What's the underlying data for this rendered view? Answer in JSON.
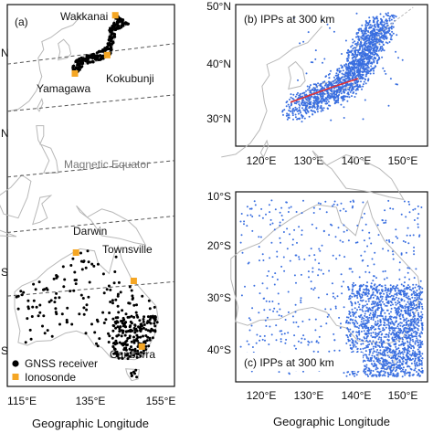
{
  "chart_data": [
    {
      "type": "scatter",
      "panel": "(a)",
      "xlabel": "Geographic Longitude",
      "ylabel": "",
      "xticks": [
        "115°E",
        "135°E",
        "155°E"
      ],
      "yticks": [
        "N",
        "N",
        "S",
        "S"
      ],
      "xlim": [
        112,
        158
      ],
      "ylim": [
        -45,
        48
      ],
      "annotation": "Magnetic Equator",
      "legend": {
        "position": "bottom-left",
        "entries": [
          {
            "name": "GNSS receiver",
            "marker": "circle",
            "color": "#000000"
          },
          {
            "name": "Ionosonde",
            "marker": "square",
            "color": "#f5a623"
          }
        ]
      },
      "stations": [
        {
          "name": "Wakkanai",
          "lon": 141.7,
          "lat": 45.4
        },
        {
          "name": "Kokubunji",
          "lon": 139.5,
          "lat": 35.7
        },
        {
          "name": "Yamagawa",
          "lon": 130.6,
          "lat": 31.2
        },
        {
          "name": "Darwin",
          "lon": 130.9,
          "lat": -12.4
        },
        {
          "name": "Townsville",
          "lon": 146.8,
          "lat": -19.3
        },
        {
          "name": "Canberra",
          "lon": 149.0,
          "lat": -35.3
        }
      ],
      "dashed_lat_lines": [
        {
          "lat_west": 33.5,
          "lat_east": 38.5
        },
        {
          "lat_west": 22.0,
          "lat_east": 26.0
        },
        {
          "lat_west": 6.0,
          "lat_east": 10.0
        },
        {
          "lat_west": -7.5,
          "lat_east": -3.5
        },
        {
          "lat_west": -23.0,
          "lat_east": -19.5
        }
      ]
    },
    {
      "type": "scatter",
      "panel": "(b)",
      "title": "(b) IPPs at 300 km",
      "xlabel": "",
      "ylabel": "",
      "xticks": [
        "120°E",
        "130°E",
        "140°E",
        "150°E"
      ],
      "yticks": [
        "30°N",
        "40°N",
        "50°N"
      ],
      "xlim": [
        115,
        155
      ],
      "ylim": [
        24,
        50
      ],
      "series": [
        {
          "name": "",
          "color": "#3a6fe0"
        }
      ]
    },
    {
      "type": "scatter",
      "panel": "(c)",
      "title": "(c) IPPs at 300 km",
      "xlabel": "Geographic Longitude",
      "ylabel": "",
      "xticks": [
        "120°E",
        "130°E",
        "140°E",
        "150°E"
      ],
      "yticks": [
        "10°S",
        "20°S",
        "30°S",
        "40°S"
      ],
      "xlim": [
        115,
        155
      ],
      "ylim": [
        -46,
        -9
      ],
      "series": [
        {
          "name": "",
          "color": "#3a6fe0"
        }
      ]
    }
  ],
  "colors": {
    "receiver": "#000000",
    "ionosonde": "#f5a623",
    "ipp": "#3a6fe0",
    "coast": "#b8b8b8",
    "track": "#e53030"
  }
}
